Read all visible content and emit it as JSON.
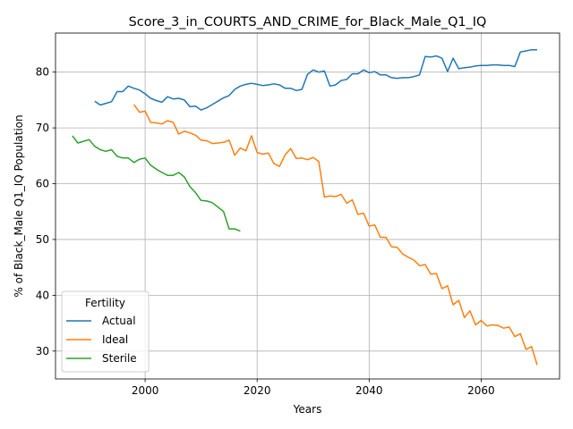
{
  "chart_data": {
    "type": "line",
    "title": "Score_3_in_COURTS_AND_CRIME_for_Black_Male_Q1_IQ",
    "xlabel": "Years",
    "ylabel": "% of Black_Male Q1_IQ Population",
    "xlim": [
      1984,
      2074
    ],
    "ylim": [
      25,
      87
    ],
    "xticks": [
      2000,
      2020,
      2040,
      2060
    ],
    "yticks": [
      30,
      40,
      50,
      60,
      70,
      80
    ],
    "grid": true,
    "legend": {
      "title": "Fertility",
      "placement": "lower-left"
    },
    "series": [
      {
        "name": "Actual",
        "color": "#1f77b4",
        "x": [
          1991,
          1992,
          1993,
          1994,
          1995,
          1996,
          1997,
          1998,
          1999,
          2000,
          2001,
          2002,
          2003,
          2004,
          2005,
          2006,
          2007,
          2008,
          2009,
          2010,
          2011,
          2012,
          2013,
          2014,
          2015,
          2016,
          2017,
          2018,
          2019,
          2020,
          2021,
          2022,
          2023,
          2024,
          2025,
          2026,
          2027,
          2028,
          2029,
          2030,
          2031,
          2032,
          2033,
          2034,
          2035,
          2036,
          2037,
          2038,
          2039,
          2040,
          2041,
          2042,
          2043,
          2044,
          2045,
          2046,
          2047,
          2048,
          2049,
          2050,
          2051,
          2052,
          2053,
          2054,
          2055,
          2056,
          2057,
          2058,
          2059,
          2060,
          2061,
          2062,
          2063,
          2064,
          2065,
          2066,
          2067,
          2068,
          2069,
          2070
        ],
        "values": [
          74.8,
          74.1,
          74.4,
          74.7,
          76.5,
          76.5,
          77.5,
          77.1,
          76.8,
          76.1,
          75.3,
          74.9,
          74.6,
          75.6,
          75.2,
          75.3,
          75.0,
          73.8,
          73.9,
          73.2,
          73.6,
          74.2,
          74.8,
          75.4,
          75.8,
          76.9,
          77.5,
          77.8,
          78.0,
          77.8,
          77.6,
          77.7,
          77.9,
          77.7,
          77.1,
          77.1,
          76.7,
          76.9,
          79.6,
          80.4,
          80.0,
          80.2,
          77.5,
          77.7,
          78.5,
          78.7,
          79.7,
          79.7,
          80.4,
          79.9,
          80.1,
          79.5,
          79.5,
          79.0,
          78.9,
          79.0,
          79.0,
          79.2,
          79.5,
          82.8,
          82.7,
          82.9,
          82.5,
          80.1,
          82.5,
          80.6,
          80.8,
          80.9,
          81.1,
          81.2,
          81.2,
          81.3,
          81.3,
          81.2,
          81.2,
          81.0,
          83.6,
          83.8,
          84.0,
          84.0
        ]
      },
      {
        "name": "Ideal",
        "color": "#ff7f0e",
        "x": [
          1998,
          1999,
          2000,
          2001,
          2002,
          2003,
          2004,
          2005,
          2006,
          2007,
          2008,
          2009,
          2010,
          2011,
          2012,
          2013,
          2014,
          2015,
          2016,
          2017,
          2018,
          2019,
          2020,
          2021,
          2022,
          2023,
          2024,
          2025,
          2026,
          2027,
          2028,
          2029,
          2030,
          2031,
          2032,
          2033,
          2034,
          2035,
          2036,
          2037,
          2038,
          2039,
          2040,
          2041,
          2042,
          2043,
          2044,
          2045,
          2046,
          2047,
          2048,
          2049,
          2050,
          2051,
          2052,
          2053,
          2054,
          2055,
          2056,
          2057,
          2058,
          2059,
          2060,
          2061,
          2062,
          2063,
          2064,
          2065,
          2066,
          2067,
          2068,
          2069,
          2070
        ],
        "values": [
          74.2,
          72.8,
          73.0,
          71.0,
          70.9,
          70.7,
          71.3,
          71.0,
          68.9,
          69.4,
          69.1,
          68.7,
          67.8,
          67.7,
          67.2,
          67.3,
          67.4,
          67.8,
          65.1,
          66.4,
          65.9,
          68.6,
          65.6,
          65.3,
          65.5,
          63.6,
          63.1,
          65.2,
          66.3,
          64.5,
          64.6,
          64.3,
          64.7,
          64.0,
          57.6,
          57.8,
          57.7,
          58.1,
          56.5,
          57.1,
          54.5,
          54.7,
          52.4,
          52.6,
          50.4,
          50.4,
          48.7,
          48.6,
          47.4,
          46.8,
          46.3,
          45.3,
          45.5,
          43.8,
          43.9,
          41.2,
          41.7,
          38.3,
          39.1,
          36.0,
          37.2,
          34.7,
          35.5,
          34.5,
          34.7,
          34.6,
          34.1,
          34.3,
          32.6,
          33.1,
          30.3,
          30.8,
          27.5
        ]
      },
      {
        "name": "Sterile",
        "color": "#2ca02c",
        "x": [
          1987,
          1988,
          1989,
          1990,
          1991,
          1992,
          1993,
          1994,
          1995,
          1996,
          1997,
          1998,
          1999,
          2000,
          2001,
          2002,
          2003,
          2004,
          2005,
          2006,
          2007,
          2008,
          2009,
          2010,
          2011,
          2012,
          2013,
          2014,
          2015,
          2016,
          2017
        ],
        "values": [
          68.6,
          67.3,
          67.6,
          67.9,
          66.7,
          66.1,
          65.8,
          66.1,
          64.9,
          64.6,
          64.6,
          63.8,
          64.4,
          64.6,
          63.3,
          62.6,
          62.0,
          61.5,
          61.5,
          62.0,
          61.2,
          59.5,
          58.4,
          57.0,
          56.9,
          56.6,
          55.8,
          55.0,
          51.9,
          51.9,
          51.5
        ]
      }
    ]
  }
}
